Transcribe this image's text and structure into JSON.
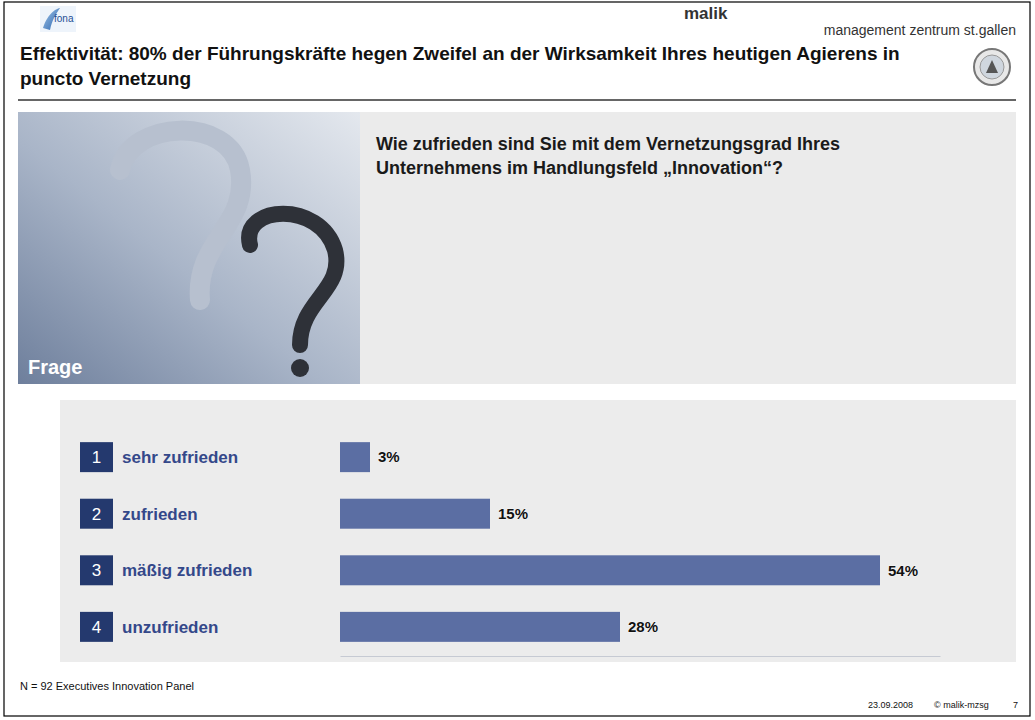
{
  "chart_data": {
    "type": "bar",
    "title": "Wie zufrieden sind Sie mit dem Vernetzungsgrad Ihres Unternehmens im Handlungsfeld „Innovation“?",
    "orientation": "horizontal",
    "categories": [
      "sehr zufrieden",
      "zufrieden",
      "mäßig zufrieden",
      "unzufrieden"
    ],
    "values": [
      3,
      15,
      54,
      28
    ],
    "value_labels": [
      "3%",
      "15%",
      "54%",
      "28%"
    ],
    "data_labels": true,
    "tick_labels": false,
    "color": "#5b6ea3",
    "xlim": [
      0,
      60
    ]
  },
  "slide": {
    "logo_left": "fona",
    "brand": "malik",
    "brand_subtitle": "management zentrum st.gallen",
    "headline": "Effektivität: 80% der Führungskräfte hegen Zweifel an der Wirksamkeit Ihres heutigen Agierens in puncto Vernetzung",
    "question_label": "Frage",
    "item_numbers": [
      "1",
      "2",
      "3",
      "4"
    ],
    "footnote": "N = 92 Executives Innovation Panel",
    "date": "23.09.2008",
    "copyright": "© malik-mzsg",
    "page": "7"
  }
}
